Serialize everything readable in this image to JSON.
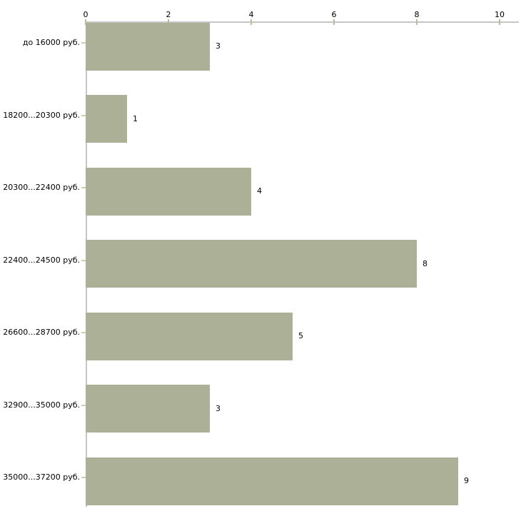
{
  "chart_data": {
    "type": "bar",
    "orientation": "horizontal",
    "title": "",
    "xlabel": "",
    "ylabel": "",
    "categories": [
      "до 16000 руб.",
      "18200...20300 руб.",
      "20300...22400 руб.",
      "22400...24500 руб.",
      "26600...28700 руб.",
      "32900...35000 руб.",
      "35000...37200 руб."
    ],
    "values": [
      3,
      1,
      4,
      8,
      5,
      3,
      9
    ],
    "value_labels": [
      "3",
      "1",
      "4",
      "8",
      "5",
      "3",
      "9"
    ],
    "xlim": [
      0,
      10
    ],
    "x_ticks": [
      0,
      2,
      4,
      6,
      8,
      10
    ],
    "x_tick_labels": [
      "0",
      "2",
      "4",
      "6",
      "8",
      "10"
    ],
    "axis_position": "top",
    "grid": false,
    "legend": false,
    "colors": {
      "bar_fill": "#abb097",
      "axis_line": "#c6c6c6",
      "tick_mark": "#bcbc96",
      "y_dash": "#cfcfae",
      "text": "#000000",
      "background": "#ffffff"
    }
  }
}
